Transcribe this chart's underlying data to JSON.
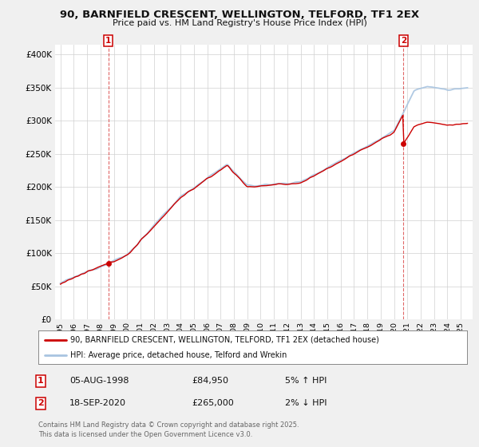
{
  "title_line1": "90, BARNFIELD CRESCENT, WELLINGTON, TELFORD, TF1 2EX",
  "title_line2": "Price paid vs. HM Land Registry's House Price Index (HPI)",
  "yticks": [
    0,
    50000,
    100000,
    150000,
    200000,
    250000,
    300000,
    350000,
    400000
  ],
  "ytick_labels": [
    "£0",
    "£50K",
    "£100K",
    "£150K",
    "£200K",
    "£250K",
    "£300K",
    "£350K",
    "£400K"
  ],
  "ylim": [
    0,
    415000
  ],
  "xlim_start": 1994.6,
  "xlim_end": 2025.9,
  "xticks": [
    1995,
    1996,
    1997,
    1998,
    1999,
    2000,
    2001,
    2002,
    2003,
    2004,
    2005,
    2006,
    2007,
    2008,
    2009,
    2010,
    2011,
    2012,
    2013,
    2014,
    2015,
    2016,
    2017,
    2018,
    2019,
    2020,
    2021,
    2022,
    2023,
    2024,
    2025
  ],
  "hpi_color": "#a8c4e0",
  "price_color": "#cc0000",
  "marker1_x": 1998.59,
  "marker1_y": 84950,
  "marker2_x": 2020.71,
  "marker2_y": 265000,
  "legend_line1": "90, BARNFIELD CRESCENT, WELLINGTON, TELFORD, TF1 2EX (detached house)",
  "legend_line2": "HPI: Average price, detached house, Telford and Wrekin",
  "annotation1_date": "05-AUG-1998",
  "annotation1_price": "£84,950",
  "annotation1_hpi": "5% ↑ HPI",
  "annotation2_date": "18-SEP-2020",
  "annotation2_price": "£265,000",
  "annotation2_hpi": "2% ↓ HPI",
  "footer": "Contains HM Land Registry data © Crown copyright and database right 2025.\nThis data is licensed under the Open Government Licence v3.0.",
  "background_color": "#f0f0f0",
  "plot_bg_color": "#ffffff",
  "grid_color": "#d0d0d0"
}
